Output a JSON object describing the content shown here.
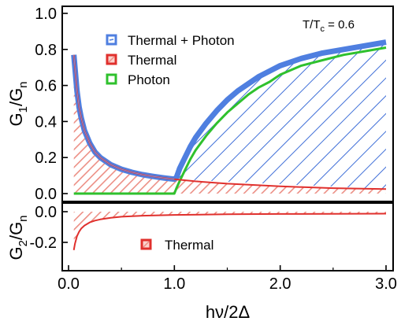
{
  "chart_data": [
    {
      "panel": "top",
      "type": "area",
      "ylabel_main": "G",
      "ylabel_sub": "1",
      "ylabel_den": "/G",
      "ylabel_den_sub": "n",
      "ylim": [
        0,
        1.0
      ],
      "xlim": [
        0,
        3.0
      ],
      "yticks": [
        0.0,
        0.2,
        0.4,
        0.6,
        0.8,
        1.0
      ],
      "ytick_labels": [
        "0.0",
        "0.2",
        "0.4",
        "0.6",
        "0.8",
        "1.0"
      ],
      "annotation_main": "T/T",
      "annotation_sub": "c",
      "annotation_value": " = 0.6",
      "legend_position": "upper-center",
      "grid": false,
      "series": [
        {
          "name": "Thermal + Photon",
          "color": "#4f7fe0",
          "hatch_color": "#3f6fd8",
          "x": [
            1.0,
            1.02,
            1.05,
            1.1,
            1.15,
            1.2,
            1.3,
            1.4,
            1.5,
            1.6,
            1.7,
            1.8,
            1.9,
            2.0,
            2.2,
            2.4,
            2.6,
            2.8,
            3.0
          ],
          "values": [
            0.08,
            0.09,
            0.14,
            0.2,
            0.26,
            0.31,
            0.39,
            0.46,
            0.52,
            0.57,
            0.61,
            0.65,
            0.68,
            0.71,
            0.75,
            0.78,
            0.8,
            0.82,
            0.84
          ]
        },
        {
          "name": "Thermal",
          "color": "#e0302d",
          "hatch_color": "#ec8f85",
          "x": [
            0.05,
            0.06,
            0.08,
            0.1,
            0.12,
            0.15,
            0.2,
            0.25,
            0.3,
            0.4,
            0.5,
            0.6,
            0.7,
            0.8,
            0.9,
            1.0,
            1.2,
            1.5,
            2.0,
            2.5,
            3.0
          ],
          "values": [
            0.77,
            0.7,
            0.57,
            0.48,
            0.42,
            0.35,
            0.28,
            0.23,
            0.2,
            0.16,
            0.135,
            0.118,
            0.105,
            0.095,
            0.087,
            0.08,
            0.068,
            0.055,
            0.04,
            0.03,
            0.025
          ]
        },
        {
          "name": "Photon",
          "color": "#2fc12d",
          "x": [
            0.05,
            1.0,
            1.02,
            1.05,
            1.1,
            1.15,
            1.2,
            1.3,
            1.4,
            1.5,
            1.6,
            1.7,
            1.8,
            1.9,
            2.0,
            2.2,
            2.4,
            2.6,
            2.8,
            3.0
          ],
          "values": [
            0.0,
            0.0,
            0.03,
            0.07,
            0.13,
            0.19,
            0.24,
            0.32,
            0.39,
            0.45,
            0.5,
            0.55,
            0.59,
            0.62,
            0.66,
            0.71,
            0.74,
            0.77,
            0.79,
            0.81
          ]
        }
      ]
    },
    {
      "panel": "bottom",
      "type": "area",
      "ylabel_main": "G",
      "ylabel_sub": "2",
      "ylabel_den": "/G",
      "ylabel_den_sub": "n",
      "xlabel": "hν/2Δ",
      "xlim": [
        0,
        3.0
      ],
      "ylim": [
        -0.28,
        0.04
      ],
      "yticks": [
        0.0,
        -0.2
      ],
      "ytick_labels": [
        "0.0",
        "-0.2"
      ],
      "xticks": [
        0.0,
        1.0,
        2.0,
        3.0
      ],
      "xtick_labels": [
        "0.0",
        "1.0",
        "2.0",
        "3.0"
      ],
      "legend_position": "center",
      "grid": false,
      "series": [
        {
          "name": "Thermal",
          "color": "#e0302d",
          "hatch_color": "#ec8f85",
          "x": [
            0.05,
            0.06,
            0.08,
            0.1,
            0.12,
            0.15,
            0.2,
            0.25,
            0.3,
            0.4,
            0.5,
            0.7,
            1.0,
            1.5,
            2.0,
            2.5,
            3.0
          ],
          "values": [
            -0.25,
            -0.21,
            -0.16,
            -0.13,
            -0.11,
            -0.09,
            -0.07,
            -0.058,
            -0.05,
            -0.04,
            -0.033,
            -0.026,
            -0.021,
            -0.017,
            -0.015,
            -0.014,
            -0.013
          ]
        }
      ]
    }
  ]
}
